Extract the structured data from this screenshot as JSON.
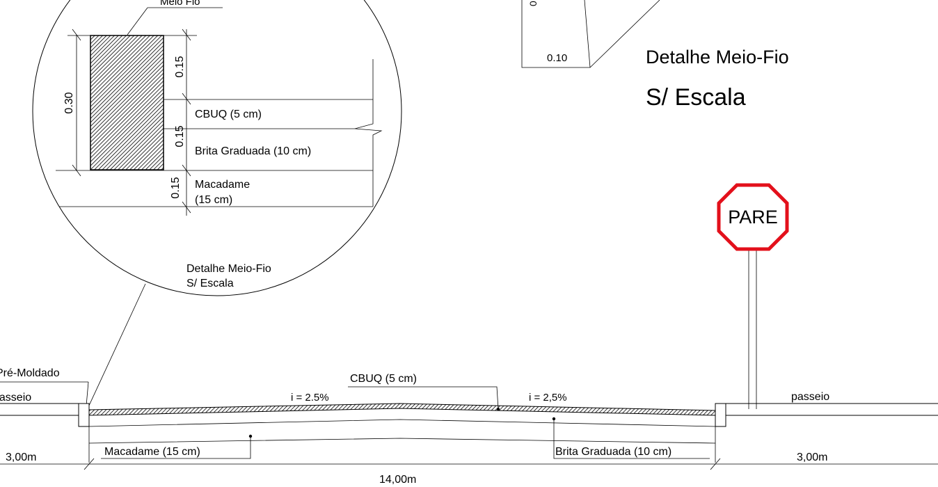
{
  "detail_circle": {
    "curb_label": "Meio Fio",
    "dim_total": "0.30",
    "dim_top": "0.15",
    "dim_mid": "0.15",
    "dim_bottom": "0.15",
    "layer_cbuq": "CBUQ (5 cm)",
    "layer_brita": "Brita Graduada (10 cm)",
    "layer_macadame_line1": "Macadame",
    "layer_macadame_line2": "(15 cm)",
    "caption_line1": "Detalhe Meio-Fio",
    "caption_line2": "S/ Escala"
  },
  "curb_detail": {
    "width_dim": "0.10",
    "title": "Detalhe Meio-Fio",
    "subtitle": "S/ Escala"
  },
  "stop_sign": {
    "text": "PARE",
    "color": "#e3101b"
  },
  "cross_section": {
    "left_curb_label": "Pré-Moldado",
    "left_sidewalk": "passeio",
    "right_sidewalk": "passeio",
    "cbuq_label": "CBUQ (5 cm)",
    "slope_left": "i = 2.5%",
    "slope_right": "i = 2,5%",
    "macadame_label": "Macadame (15 cm)",
    "brita_label": "Brita Graduada (10 cm)",
    "left_width": "3,00m",
    "right_width": "3,00m",
    "total_width": "14,00m"
  }
}
